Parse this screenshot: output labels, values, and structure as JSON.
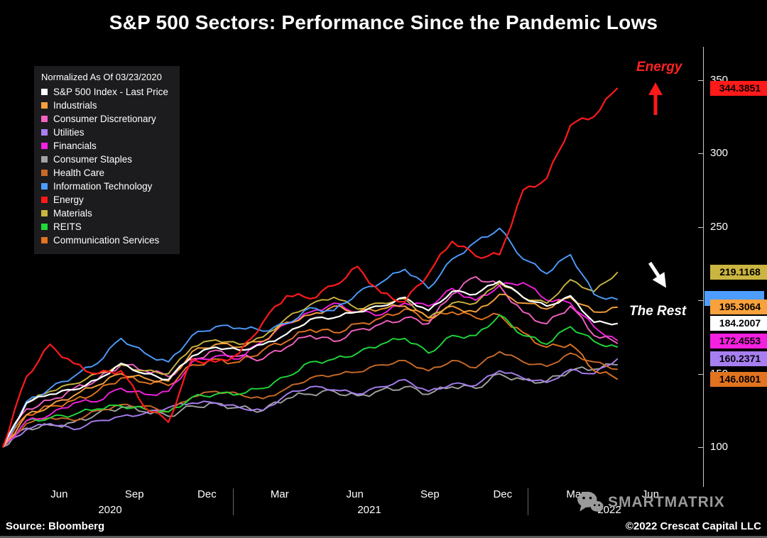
{
  "title": "S&P 500 Sectors: Performance Since the Pandemic Lows",
  "legend": {
    "title": "Normalized As Of 03/23/2020"
  },
  "annotations": {
    "energy": "Energy",
    "the_rest": "The Rest"
  },
  "watermark": {
    "text": "SMARTMATRIX"
  },
  "footer": {
    "source": "Source: Bloomberg",
    "copyright": "©2022 Crescat Capital LLC"
  },
  "chart_data": {
    "type": "line",
    "title": "S&P 500 Sectors: Performance Since the Pandemic Lows",
    "normalized_as_of": "03/23/2020",
    "x_range": "2020-03-23 to 2022-05, monthly samples",
    "x_ticks": [
      "Jun",
      "Sep",
      "Dec",
      "Mar",
      "Jun",
      "Sep",
      "Dec",
      "Mar",
      "Jun"
    ],
    "x_years": [
      "2020",
      "2021",
      "2022"
    ],
    "y_ticks": [
      350,
      300,
      250,
      200,
      150,
      100
    ],
    "ylim": [
      80,
      365
    ],
    "grid": false,
    "legend_position": "top-left",
    "series": [
      {
        "name": "S&P 500 Index - Last Price",
        "color": "#ffffff",
        "last_label": "184.2007",
        "values": [
          100,
          130,
          136,
          139,
          146,
          157,
          150,
          146,
          162,
          168,
          166,
          170,
          177,
          187,
          188,
          192,
          196,
          202,
          193,
          206,
          204,
          213,
          202,
          196,
          203,
          185,
          184.2
        ]
      },
      {
        "name": "Industrials",
        "color": "#f9a13c",
        "last_label": "195.3064",
        "values": [
          100,
          122,
          128,
          135,
          142,
          150,
          147,
          145,
          165,
          170,
          168,
          172,
          185,
          190,
          196,
          192,
          194,
          196,
          188,
          196,
          192,
          204,
          198,
          194,
          202,
          192,
          195.31
        ]
      },
      {
        "name": "Consumer Discretionary",
        "color": "#f462c3",
        "last_label": null,
        "values": [
          100,
          126,
          132,
          140,
          146,
          156,
          152,
          148,
          160,
          166,
          162,
          160,
          168,
          176,
          172,
          180,
          184,
          188,
          184,
          204,
          216,
          210,
          192,
          184,
          196,
          176,
          170.5
        ]
      },
      {
        "name": "Utilities",
        "color": "#a87ff1",
        "last_label": "160.2371",
        "values": [
          100,
          112,
          116,
          112,
          118,
          121,
          123,
          127,
          130,
          130,
          127,
          125,
          136,
          141,
          139,
          136,
          141,
          146,
          138,
          143,
          142,
          152,
          147,
          144,
          153,
          150,
          160.24
        ]
      },
      {
        "name": "Financials",
        "color": "#f520e0",
        "last_label": "172.4553",
        "values": [
          100,
          118,
          122,
          130,
          131,
          140,
          136,
          138,
          158,
          162,
          160,
          172,
          184,
          192,
          198,
          192,
          190,
          198,
          196,
          208,
          200,
          210,
          212,
          200,
          198,
          182,
          172.46
        ]
      },
      {
        "name": "Consumer Staples",
        "color": "#a2a2a2",
        "last_label": null,
        "values": [
          100,
          113,
          115,
          117,
          123,
          127,
          124,
          121,
          128,
          130,
          127,
          125,
          133,
          136,
          138,
          135,
          139,
          141,
          136,
          141,
          140,
          150,
          146,
          145,
          152,
          153,
          156
        ]
      },
      {
        "name": "Health Care",
        "color": "#c96a28",
        "last_label": null,
        "values": [
          100,
          116,
          120,
          118,
          125,
          129,
          128,
          124,
          134,
          138,
          136,
          133,
          140,
          147,
          149,
          151,
          156,
          159,
          152,
          159,
          154,
          165,
          158,
          155,
          164,
          158,
          153
        ]
      },
      {
        "name": "Information Technology",
        "color": "#4d9dff",
        "last_label": "",
        "values": [
          100,
          131,
          140,
          148,
          157,
          174,
          164,
          158,
          176,
          182,
          181,
          179,
          184,
          195,
          193,
          205,
          212,
          221,
          208,
          228,
          240,
          249,
          228,
          218,
          231,
          204,
          200.5
        ]
      },
      {
        "name": "Energy",
        "color": "#ff1a1a",
        "last_label": "344.3851",
        "values": [
          100,
          148,
          170,
          157,
          150,
          152,
          127,
          117,
          160,
          158,
          164,
          185,
          203,
          201,
          210,
          223,
          205,
          199,
          218,
          240,
          230,
          231,
          275,
          283,
          319,
          325,
          344.39
        ]
      },
      {
        "name": "Materials",
        "color": "#cbb541",
        "last_label": "219.1168",
        "values": [
          100,
          130,
          138,
          143,
          150,
          156,
          152,
          150,
          168,
          173,
          170,
          175,
          188,
          197,
          202,
          194,
          198,
          201,
          188,
          198,
          198,
          212,
          202,
          198,
          214,
          206,
          219.12
        ]
      },
      {
        "name": "REITS",
        "color": "#1fd83a",
        "last_label": null,
        "values": [
          100,
          118,
          120,
          122,
          126,
          128,
          126,
          124,
          134,
          136,
          136,
          140,
          148,
          158,
          160,
          164,
          170,
          174,
          164,
          176,
          176,
          190,
          176,
          170,
          182,
          172,
          168
        ]
      },
      {
        "name": "Communication Services",
        "color": "#e2731f",
        "last_label": "146.0801",
        "values": [
          100,
          122,
          128,
          132,
          138,
          147,
          144,
          142,
          156,
          160,
          158,
          166,
          172,
          180,
          178,
          184,
          188,
          194,
          186,
          192,
          188,
          190,
          178,
          168,
          170,
          152,
          146.08
        ]
      }
    ],
    "draw_order": [
      5,
      3,
      6,
      11,
      10,
      2,
      4,
      9,
      1,
      7,
      0,
      8
    ],
    "right_axis_labels": [
      {
        "text": "344.3851",
        "bg": "#ff1a1a",
        "value": 344.3851,
        "partial": false
      },
      {
        "text": "219.1168",
        "bg": "#cbb541",
        "value": 219.1168,
        "partial": false
      },
      {
        "text": "",
        "bg": "#4d9dff",
        "value": 201,
        "partial": true
      },
      {
        "text": "195.3064",
        "bg": "#f9a13c",
        "value": 195.3064,
        "partial": false
      },
      {
        "text": "184.2007",
        "bg": "#ffffff",
        "value": 184.2007,
        "partial": false
      },
      {
        "text": "172.4553",
        "bg": "#f520e0",
        "value": 172.4553,
        "partial": false
      },
      {
        "text": "160.2371",
        "bg": "#a87ff1",
        "value": 160.2371,
        "partial": false
      },
      {
        "text": "146.0801",
        "bg": "#e2731f",
        "value": 146.0801,
        "partial": false
      }
    ]
  }
}
